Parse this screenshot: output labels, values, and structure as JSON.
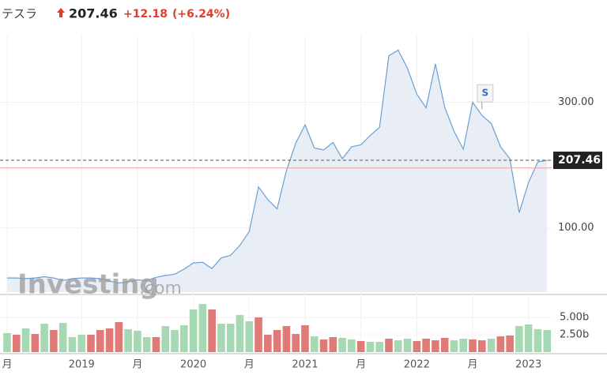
{
  "header": {
    "name": "テスラ",
    "price": "207.46",
    "change": "+12.18",
    "change_pct": "(+6.24%)"
  },
  "watermark": {
    "brand": "Investing",
    "suffix": ".com"
  },
  "chart_data": {
    "type": "area",
    "categories": [
      "月",
      null,
      null,
      null,
      null,
      null,
      null,
      null,
      "2019",
      null,
      null,
      null,
      null,
      null,
      "月",
      null,
      null,
      null,
      null,
      null,
      "2020",
      null,
      null,
      null,
      null,
      null,
      "月",
      null,
      null,
      null,
      null,
      null,
      "2021",
      null,
      null,
      null,
      null,
      null,
      "月",
      null,
      null,
      null,
      null,
      null,
      "2022",
      null,
      null,
      null,
      null,
      null,
      "月",
      null,
      null,
      null,
      null,
      null,
      "2023",
      null,
      null
    ],
    "values": [
      20,
      20,
      19,
      20,
      22,
      20,
      16,
      19,
      20,
      20,
      19,
      15,
      12,
      14,
      17,
      16,
      21,
      24,
      26,
      34,
      44,
      45,
      35,
      52,
      56,
      72,
      94,
      165,
      145,
      130,
      191,
      235,
      264,
      227,
      224,
      236,
      210,
      229,
      232,
      247,
      260,
      374,
      383,
      354,
      313,
      291,
      361,
      292,
      254,
      225,
      300,
      279,
      266,
      229,
      210,
      124,
      172,
      205,
      207.46
    ],
    "color": "#6a9fd4",
    "fill": "#e9eef6",
    "ylim": [
      -2.5,
      406.25
    ],
    "yticks": [
      {
        "value": 100,
        "label": "100.00"
      },
      {
        "value": 300,
        "label": "300.00"
      }
    ],
    "last_label": "207.46",
    "prev_close": 195.28,
    "annotations": [
      {
        "text": "S",
        "category_index": 51
      }
    ],
    "volume": {
      "type": "bar",
      "values": [
        2.73,
        2.5,
        3.41,
        2.61,
        4.09,
        3.18,
        4.2,
        2.16,
        2.5,
        2.5,
        3.18,
        3.41,
        4.32,
        3.3,
        3.07,
        2.16,
        2.16,
        3.75,
        3.18,
        3.86,
        6.14,
        6.93,
        6.14,
        4.09,
        4.09,
        5.34,
        4.43,
        5,
        2.5,
        3.18,
        3.75,
        2.61,
        3.86,
        2.27,
        1.82,
        2.16,
        2.05,
        1.82,
        1.59,
        1.48,
        1.48,
        1.93,
        1.7,
        1.93,
        1.59,
        1.93,
        1.7,
        2.05,
        1.7,
        1.93,
        1.82,
        1.7,
        1.93,
        2.27,
        2.39,
        3.75,
        3.98,
        3.3,
        3.18
      ],
      "colors": [
        "#a6d8b4",
        "#e07a76",
        "#a6d8b4",
        "#e07a76",
        "#a6d8b4",
        "#e07a76",
        "#a6d8b4",
        "#a6d8b4",
        "#a6d8b4",
        "#e07a76",
        "#e07a76",
        "#e07a76",
        "#e07a76",
        "#a6d8b4",
        "#a6d8b4",
        "#a6d8b4",
        "#e07a76",
        "#a6d8b4",
        "#a6d8b4",
        "#a6d8b4",
        "#a6d8b4",
        "#a6d8b4",
        "#e07a76",
        "#a6d8b4",
        "#a6d8b4",
        "#a6d8b4",
        "#a6d8b4",
        "#e07a76",
        "#e07a76",
        "#e07a76",
        "#e07a76",
        "#e07a76",
        "#e07a76",
        "#a6d8b4",
        "#e07a76",
        "#e07a76",
        "#a6d8b4",
        "#a6d8b4",
        "#e07a76",
        "#a6d8b4",
        "#a6d8b4",
        "#e07a76",
        "#a6d8b4",
        "#a6d8b4",
        "#e07a76",
        "#e07a76",
        "#e07a76",
        "#e07a76",
        "#a6d8b4",
        "#a6d8b4",
        "#e07a76",
        "#e07a76",
        "#a6d8b4",
        "#e07a76",
        "#e07a76",
        "#a6d8b4",
        "#a6d8b4",
        "#a6d8b4",
        "#a6d8b4"
      ],
      "ylim": [
        0,
        7.73
      ],
      "yticks": [
        {
          "value": 2.5,
          "label": "2.50b"
        },
        {
          "value": 5,
          "label": "5.00b"
        }
      ]
    }
  }
}
